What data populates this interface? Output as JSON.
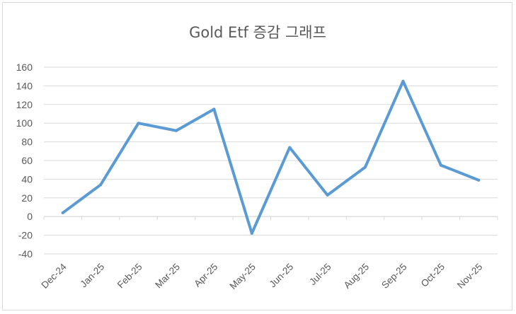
{
  "chart_data": {
    "type": "line",
    "title": "Gold Etf 증감 그래프",
    "xlabel": "",
    "ylabel": "",
    "categories": [
      "Dec-24",
      "Jan-25",
      "Feb-25",
      "Mar-25",
      "Apr-25",
      "May-25",
      "Jun-25",
      "Jul-25",
      "Aug-25",
      "Sep-25",
      "Oct-25",
      "Nov-25"
    ],
    "series": [
      {
        "values": [
          4,
          34,
          100,
          92,
          115,
          -18,
          74,
          23,
          53,
          145,
          55,
          39
        ]
      }
    ],
    "ylim": [
      -40,
      160
    ],
    "yticks": [
      "160",
      "140",
      "120",
      "100",
      "80",
      "60",
      "40",
      "20",
      "0",
      "-20",
      "-40"
    ],
    "grid": true,
    "legend": "none",
    "colors": {
      "line": "#5b9bd5",
      "grid": "#d9d9d9",
      "text": "#595959"
    }
  }
}
